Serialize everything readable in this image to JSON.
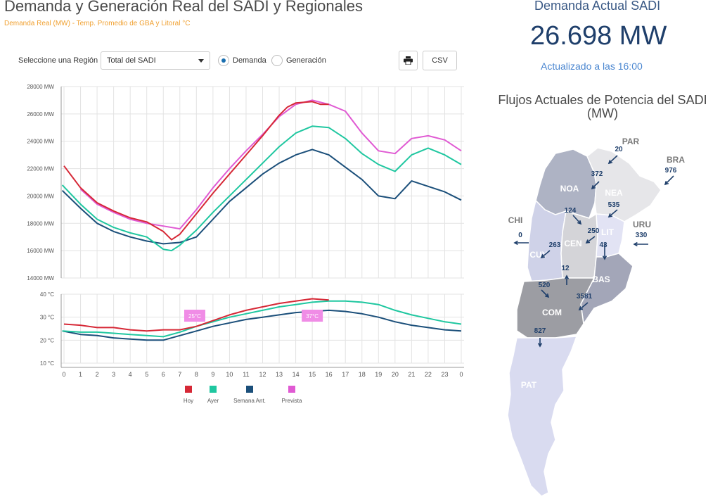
{
  "header": {
    "title": "Demanda y Generación Real del SADI y Regionales",
    "subtitle": "Demanda Real (MW) - Temp. Promedio de GBA y Litoral °C"
  },
  "controls": {
    "region_label": "Seleccione una Región",
    "region_value": "Total del SADI",
    "radio_demanda": "Demanda",
    "radio_generacion": "Generación",
    "radio_selected": "Demanda",
    "csv_label": "CSV"
  },
  "summary": {
    "title": "Demanda Actual SADI",
    "value": "26.698 MW",
    "updated": "Actualizado a las 16:00"
  },
  "flows": {
    "title": "Flujos Actuales de Potencia del SADI (MW)",
    "regions": [
      "NOA",
      "NEA",
      "CEN",
      "LIT",
      "CUY",
      "BAS",
      "COM",
      "PAT"
    ],
    "countries": [
      "PAR",
      "BRA",
      "CHI",
      "URU"
    ],
    "values": [
      "20",
      "976",
      "372",
      "535",
      "124",
      "250",
      "0",
      "330",
      "263",
      "43",
      "12",
      "520",
      "3581",
      "827"
    ]
  },
  "chart_data": {
    "type": "line",
    "x_ticks": [
      "0",
      "1",
      "2",
      "3",
      "4",
      "5",
      "6",
      "7",
      "8",
      "9",
      "10",
      "11",
      "12",
      "13",
      "14",
      "15",
      "16",
      "17",
      "18",
      "19",
      "20",
      "21",
      "22",
      "23",
      "0"
    ],
    "demand_panel": {
      "y_ticks": [
        "28000 MW",
        "26000 MW",
        "24000 MW",
        "22000 MW",
        "20000 MW",
        "18000 MW",
        "16000 MW",
        "14000 MW"
      ],
      "ylim": [
        14000,
        28000
      ],
      "series": [
        {
          "name": "Hoy",
          "color": "#d62836",
          "x": [
            0,
            1,
            2,
            3,
            4,
            5,
            6,
            6.5,
            7,
            8,
            9,
            10,
            11,
            12,
            13,
            13.5,
            14,
            15,
            15.5,
            16
          ],
          "values": [
            22200,
            20600,
            19500,
            18900,
            18400,
            18100,
            17400,
            16800,
            17200,
            18700,
            20200,
            21600,
            23000,
            24400,
            25900,
            26500,
            26800,
            26900,
            26700,
            26700
          ]
        },
        {
          "name": "Ayer",
          "color": "#1fc7a0",
          "x": [
            -0.1,
            1,
            2,
            3,
            4,
            5,
            6,
            6.5,
            7,
            8,
            9,
            10,
            11,
            12,
            13,
            14,
            15,
            16,
            17,
            18,
            19,
            20,
            21,
            22,
            23,
            24
          ],
          "values": [
            20800,
            19400,
            18300,
            17700,
            17300,
            17000,
            16100,
            16000,
            16400,
            17500,
            18800,
            20000,
            21200,
            22400,
            23600,
            24600,
            25100,
            25000,
            24200,
            23100,
            22300,
            21800,
            23000,
            23500,
            23000,
            22300
          ]
        },
        {
          "name": "Semana Ant.",
          "color": "#1b4f7a",
          "x": [
            -0.1,
            1,
            2,
            3,
            4,
            5,
            6,
            7,
            8,
            9,
            10,
            11,
            12,
            13,
            14,
            15,
            16,
            17,
            18,
            19,
            20,
            21,
            22,
            23,
            24
          ],
          "values": [
            20400,
            19100,
            18000,
            17400,
            17000,
            16700,
            16500,
            16600,
            17000,
            18300,
            19600,
            20600,
            21600,
            22400,
            23000,
            23400,
            23000,
            22100,
            21200,
            20000,
            19800,
            21100,
            20700,
            20300,
            19700
          ]
        },
        {
          "name": "Prevista",
          "color": "#e05ad3",
          "x": [
            1,
            2,
            3,
            4,
            5,
            6,
            7,
            8,
            9,
            10,
            11,
            12,
            13,
            14,
            15,
            16,
            17,
            18,
            19,
            20,
            21,
            22,
            23,
            24
          ],
          "values": [
            20500,
            19400,
            18800,
            18300,
            18000,
            17800,
            17600,
            19000,
            20600,
            22000,
            23300,
            24500,
            25800,
            26700,
            27000,
            26700,
            26200,
            24600,
            23300,
            23100,
            24200,
            24400,
            24100,
            23300
          ]
        }
      ]
    },
    "temp_panel": {
      "y_ticks": [
        "40 °C",
        "30 °C",
        "20 °C",
        "10 °C"
      ],
      "ylim": [
        10,
        40
      ],
      "series": [
        {
          "name": "Hoy",
          "color": "#d62836",
          "x": [
            0,
            1,
            2,
            3,
            4,
            5,
            6,
            7,
            8,
            9,
            10,
            11,
            12,
            13,
            14,
            15,
            16
          ],
          "values": [
            27,
            26.5,
            25.5,
            25.5,
            24.5,
            24,
            24.5,
            24.5,
            26,
            28.5,
            31,
            33,
            34.5,
            36,
            37,
            38,
            37.5
          ]
        },
        {
          "name": "Ayer",
          "color": "#1fc7a0",
          "x": [
            -0.1,
            1,
            2,
            3,
            4,
            5,
            6,
            7,
            8,
            9,
            10,
            11,
            12,
            13,
            14,
            15,
            16,
            17,
            18,
            19,
            20,
            21,
            22,
            23,
            24
          ],
          "values": [
            24,
            23.5,
            23.5,
            23,
            22.5,
            22,
            21.5,
            23.5,
            26,
            28,
            30,
            31.5,
            33,
            34.5,
            35.5,
            36.5,
            37,
            37,
            36.5,
            35.5,
            33,
            31,
            29.5,
            28,
            27
          ]
        },
        {
          "name": "Semana Ant.",
          "color": "#1b4f7a",
          "x": [
            -0.1,
            1,
            2,
            3,
            4,
            5,
            6,
            7,
            8,
            9,
            10,
            11,
            12,
            13,
            14,
            15,
            16,
            17,
            18,
            19,
            20,
            21,
            22,
            23,
            24
          ],
          "values": [
            24,
            22.5,
            22,
            21,
            20.5,
            20,
            20,
            22,
            24,
            26,
            27.5,
            29,
            30,
            31,
            32,
            32.5,
            33,
            32.5,
            31.5,
            30,
            28,
            26.5,
            25.5,
            24.5,
            24
          ]
        }
      ],
      "annotations": [
        {
          "label": "25°C",
          "x": 7.9,
          "y": 30.5
        },
        {
          "label": "37°C",
          "x": 15,
          "y": 30.5
        }
      ]
    },
    "legend": [
      "Hoy",
      "Ayer",
      "Semana Ant.",
      "Prevista"
    ],
    "legend_placement": "bottom",
    "grid": true
  }
}
